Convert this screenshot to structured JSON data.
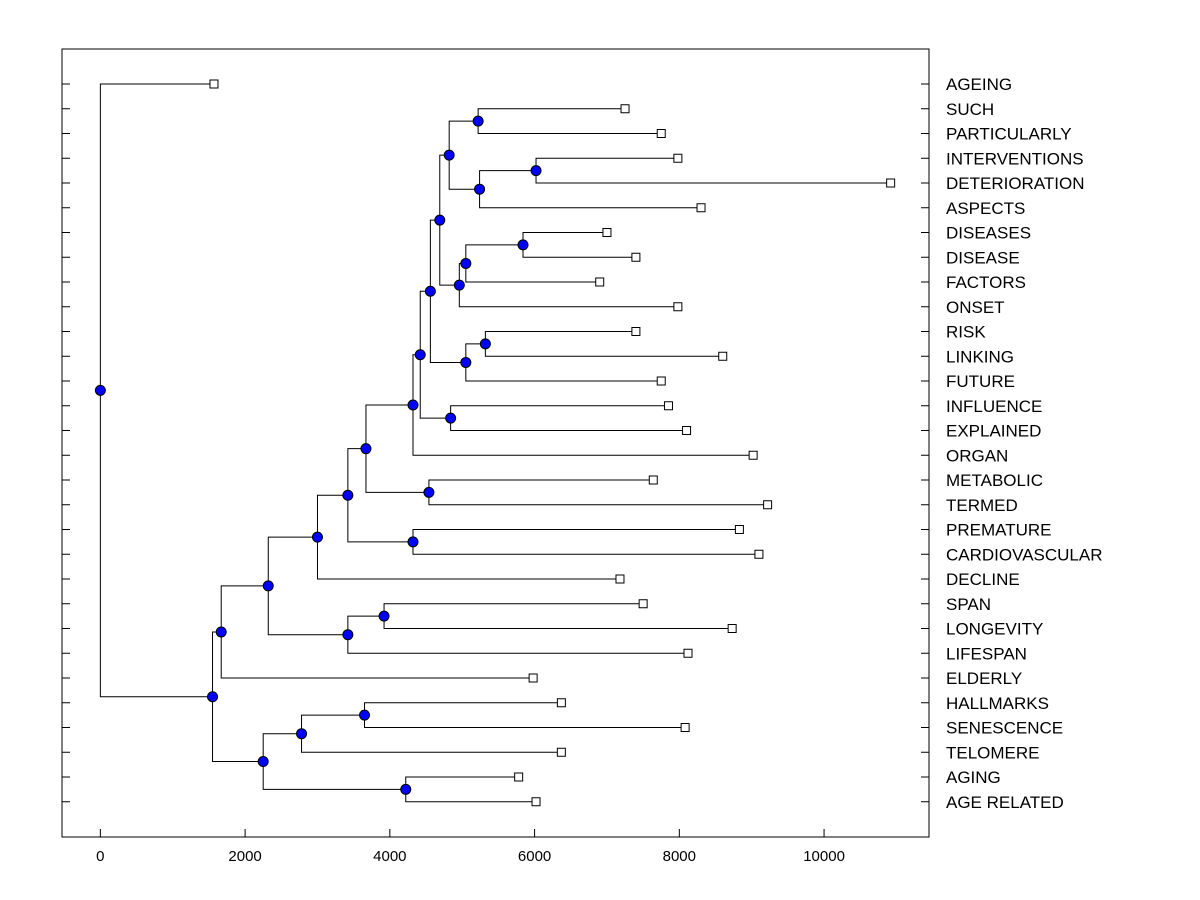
{
  "chart_data": {
    "type": "dendrogram",
    "title": "",
    "xlabel": "",
    "ylabel": "",
    "xlim": [
      -530,
      11450
    ],
    "xticks": [
      0,
      2000,
      4000,
      6000,
      8000,
      10000
    ],
    "xtick_labels": [
      "0",
      "2000",
      "4000",
      "6000",
      "8000",
      "10000"
    ],
    "grid": false,
    "colors": {
      "node": "#0000ff",
      "line": "#000000",
      "leaf": "#ffffff"
    },
    "leaves": [
      {
        "label": "AGEING",
        "x": 1570
      },
      {
        "label": "SUCH",
        "x": 7250
      },
      {
        "label": "PARTICULARLY",
        "x": 7750
      },
      {
        "label": "INTERVENTIONS",
        "x": 7980
      },
      {
        "label": "DETERIORATION",
        "x": 10920
      },
      {
        "label": "ASPECTS",
        "x": 8300
      },
      {
        "label": "DISEASES",
        "x": 7000
      },
      {
        "label": "DISEASE",
        "x": 7400
      },
      {
        "label": "FACTORS",
        "x": 6900
      },
      {
        "label": "ONSET",
        "x": 7980
      },
      {
        "label": "RISK",
        "x": 7400
      },
      {
        "label": "LINKING",
        "x": 8600
      },
      {
        "label": "FUTURE",
        "x": 7750
      },
      {
        "label": "INFLUENCE",
        "x": 7850
      },
      {
        "label": "EXPLAINED",
        "x": 8100
      },
      {
        "label": "ORGAN",
        "x": 9020
      },
      {
        "label": "METABOLIC",
        "x": 7640
      },
      {
        "label": "TERMED",
        "x": 9220
      },
      {
        "label": "PREMATURE",
        "x": 8830
      },
      {
        "label": "CARDIOVASCULAR",
        "x": 9100
      },
      {
        "label": "DECLINE",
        "x": 7180
      },
      {
        "label": "SPAN",
        "x": 7500
      },
      {
        "label": "LONGEVITY",
        "x": 8730
      },
      {
        "label": "LIFESPAN",
        "x": 8120
      },
      {
        "label": "ELDERLY",
        "x": 5980
      },
      {
        "label": "HALLMARKS",
        "x": 6370
      },
      {
        "label": "SENESCENCE",
        "x": 8080
      },
      {
        "label": "TELOMERE",
        "x": 6370
      },
      {
        "label": "AGING",
        "x": 5780
      },
      {
        "label": "AGE RELATED",
        "x": 6020
      }
    ],
    "nodes": [
      {
        "id": "n1",
        "x": 5220,
        "children": [
          1,
          2
        ]
      },
      {
        "id": "n2",
        "x": 6020,
        "children": [
          3,
          4
        ]
      },
      {
        "id": "n3",
        "x": 5240,
        "children": [
          "n2",
          5
        ]
      },
      {
        "id": "n4",
        "x": 4820,
        "children": [
          "n1",
          "n3"
        ]
      },
      {
        "id": "n5",
        "x": 5840,
        "children": [
          6,
          7
        ]
      },
      {
        "id": "n6",
        "x": 5050,
        "children": [
          "n5",
          8
        ]
      },
      {
        "id": "n7",
        "x": 4960,
        "children": [
          "n6",
          9
        ]
      },
      {
        "id": "n8",
        "x": 4690,
        "children": [
          "n4",
          "n7"
        ]
      },
      {
        "id": "n9",
        "x": 5320,
        "children": [
          10,
          11
        ]
      },
      {
        "id": "n10",
        "x": 5050,
        "children": [
          "n9",
          12
        ]
      },
      {
        "id": "n11",
        "x": 4560,
        "children": [
          "n8",
          "n10"
        ]
      },
      {
        "id": "n12",
        "x": 4840,
        "children": [
          13,
          14
        ]
      },
      {
        "id": "n13",
        "x": 4420,
        "children": [
          "n11",
          "n12"
        ]
      },
      {
        "id": "n14",
        "x": 4320,
        "children": [
          "n13",
          15
        ]
      },
      {
        "id": "n15",
        "x": 4540,
        "children": [
          16,
          17
        ]
      },
      {
        "id": "n16",
        "x": 3670,
        "children": [
          "n14",
          "n15"
        ]
      },
      {
        "id": "n17",
        "x": 4320,
        "children": [
          18,
          19
        ]
      },
      {
        "id": "n18",
        "x": 3420,
        "children": [
          "n16",
          "n17"
        ]
      },
      {
        "id": "n19",
        "x": 3000,
        "children": [
          "n18",
          20
        ]
      },
      {
        "id": "n20",
        "x": 3920,
        "children": [
          21,
          22
        ]
      },
      {
        "id": "n21",
        "x": 3420,
        "children": [
          "n20",
          23
        ]
      },
      {
        "id": "n22",
        "x": 2320,
        "children": [
          "n19",
          "n21"
        ]
      },
      {
        "id": "n23",
        "x": 1670,
        "children": [
          "n22",
          24
        ]
      },
      {
        "id": "n24",
        "x": 3650,
        "children": [
          25,
          26
        ]
      },
      {
        "id": "n25",
        "x": 2780,
        "children": [
          "n24",
          27
        ]
      },
      {
        "id": "n26",
        "x": 4220,
        "children": [
          28,
          29
        ]
      },
      {
        "id": "n27",
        "x": 2250,
        "children": [
          "n25",
          "n26"
        ]
      },
      {
        "id": "n28",
        "x": 1550,
        "children": [
          "n23",
          "n27"
        ]
      },
      {
        "id": "n29",
        "x": 0,
        "children": [
          0,
          "n28"
        ]
      }
    ]
  }
}
